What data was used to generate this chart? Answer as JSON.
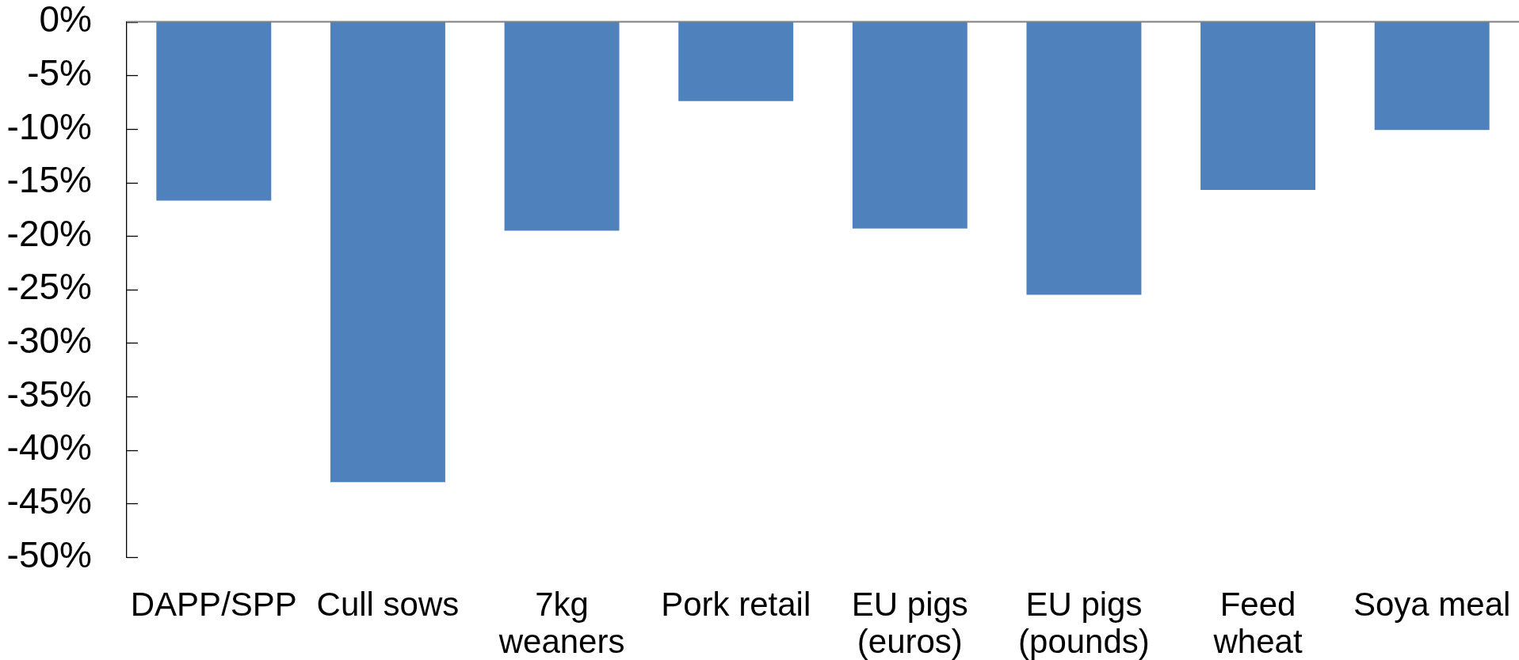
{
  "chart_data": {
    "type": "bar",
    "categories": [
      "DAPP/SPP",
      "Cull sows",
      "7kg weaners",
      "Pork retail",
      "EU pigs (euros)",
      "EU pigs (pounds)",
      "Feed wheat",
      "Soya meal"
    ],
    "values": [
      -16.7,
      -43.0,
      -19.5,
      -7.4,
      -19.3,
      -25.5,
      -15.7,
      -10.1
    ],
    "color": "#4f81bd",
    "ylim": [
      -50,
      0
    ],
    "yticks": [
      {
        "value": 0,
        "label": "0%"
      },
      {
        "value": -5,
        "label": "-5%"
      },
      {
        "value": -10,
        "label": "-10%"
      },
      {
        "value": -15,
        "label": "-15%"
      },
      {
        "value": -20,
        "label": "-20%"
      },
      {
        "value": -25,
        "label": "-25%"
      },
      {
        "value": -30,
        "label": "-30%"
      },
      {
        "value": -35,
        "label": "-35%"
      },
      {
        "value": -40,
        "label": "-40%"
      },
      {
        "value": -45,
        "label": "-45%"
      },
      {
        "value": -50,
        "label": "-50%"
      }
    ],
    "grid": false,
    "legend": false
  }
}
